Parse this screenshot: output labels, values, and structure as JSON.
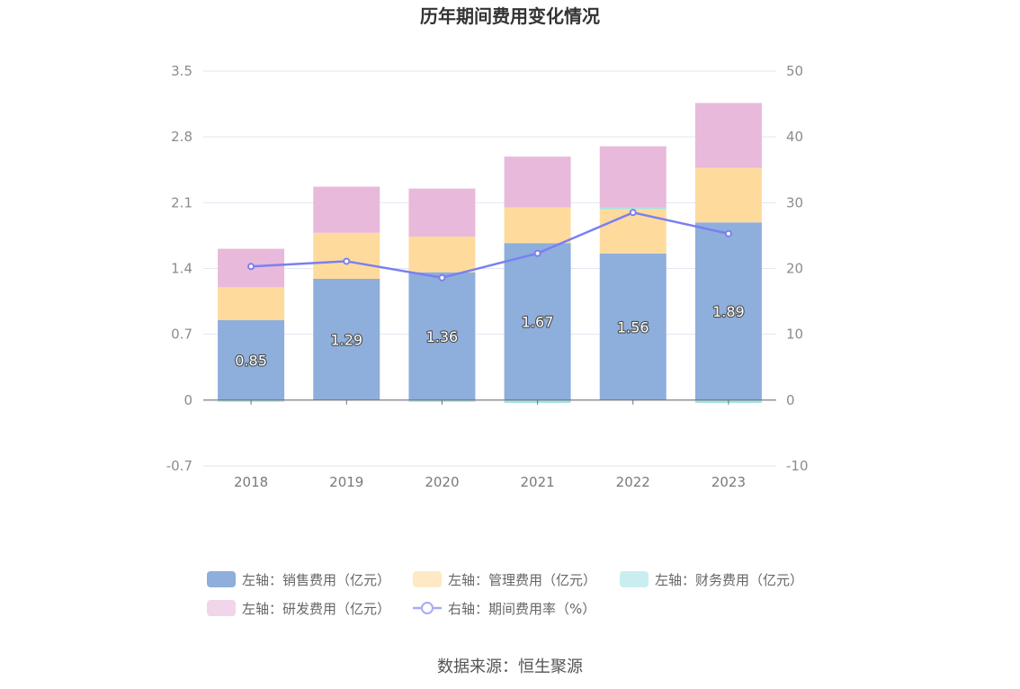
{
  "chart_data": {
    "type": "bar",
    "title": "历年期间费用变化情况",
    "categories": [
      "2018",
      "2019",
      "2020",
      "2021",
      "2022",
      "2023"
    ],
    "left_axis": {
      "min": -0.7,
      "max": 3.5,
      "ticks": [
        "-0.7",
        "0",
        "0.7",
        "1.4",
        "2.1",
        "2.8",
        "3.5"
      ]
    },
    "right_axis": {
      "min": -10,
      "max": 50,
      "ticks": [
        "-10",
        "0",
        "10",
        "20",
        "30",
        "40",
        "50"
      ]
    },
    "series": [
      {
        "name": "左轴：销售费用（亿元）",
        "axis": "left",
        "type": "bar",
        "color": "#8eaedb",
        "values": [
          0.85,
          1.29,
          1.36,
          1.67,
          1.56,
          1.89
        ],
        "labels": [
          "0.85",
          "1.29",
          "1.36",
          "1.67",
          "1.56",
          "1.89"
        ]
      },
      {
        "name": "左轴：管理费用（亿元）",
        "axis": "left",
        "type": "bar",
        "color": "#fedb9d",
        "values": [
          0.35,
          0.49,
          0.38,
          0.38,
          0.47,
          0.58
        ]
      },
      {
        "name": "左轴：财务费用（亿元）",
        "axis": "left",
        "type": "bar",
        "color": "#a7e2e4",
        "values": [
          -0.01,
          0.0,
          -0.01,
          -0.03,
          0.02,
          -0.03
        ]
      },
      {
        "name": "左轴：研发费用（亿元）",
        "axis": "left",
        "type": "bar",
        "color": "#e8b9db",
        "values": [
          0.41,
          0.49,
          0.51,
          0.54,
          0.65,
          0.69
        ]
      },
      {
        "name": "右轴：期间费用率（%）",
        "axis": "right",
        "type": "line",
        "color": "#7b7ff0",
        "values": [
          20.3,
          21.1,
          18.6,
          22.3,
          28.5,
          25.3
        ]
      }
    ],
    "legend_position": "bottom",
    "grid": true
  },
  "source_text": "数据来源：恒生聚源"
}
